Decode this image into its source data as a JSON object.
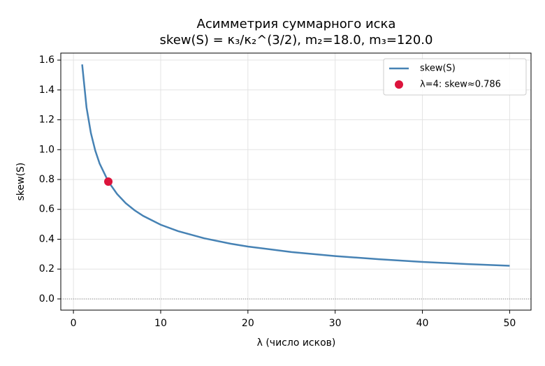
{
  "chart_data": {
    "type": "line",
    "title": "Асимметрия суммарного иска",
    "subtitle": "skew(S) = κ₃/κ₂^(3/2), m₂=18.0, m₃=120.0",
    "xlabel": "λ (число исков)",
    "ylabel": "skew(S)",
    "xlim": [
      -1.45,
      52.45
    ],
    "ylim": [
      -0.075,
      1.647
    ],
    "xticks": [
      0,
      10,
      20,
      30,
      40,
      50
    ],
    "yticks": [
      {
        "value": 0,
        "label": "0.0"
      },
      0.2,
      0.4,
      0.6,
      0.8,
      {
        "value": 1,
        "label": "1.0"
      },
      1.2,
      1.4,
      1.6
    ],
    "grid": true,
    "legend": "upper right",
    "hline": 0,
    "series": [
      {
        "name": "skew(S)",
        "color": "#4682b4",
        "kind": "line",
        "x": [
          1,
          1.5,
          2,
          2.5,
          3,
          4,
          5,
          6,
          7,
          8,
          10,
          12,
          15,
          18,
          20,
          25,
          30,
          35,
          40,
          45,
          50
        ],
        "values": [
          1.571,
          1.283,
          1.111,
          0.994,
          0.907,
          0.786,
          0.703,
          0.641,
          0.594,
          0.556,
          0.497,
          0.454,
          0.406,
          0.37,
          0.351,
          0.314,
          0.287,
          0.266,
          0.248,
          0.234,
          0.222
        ]
      },
      {
        "name": "λ=4: skew≈0.786",
        "color": "#dc143c",
        "kind": "scatter",
        "x": [
          4
        ],
        "values": [
          0.786
        ]
      }
    ]
  }
}
